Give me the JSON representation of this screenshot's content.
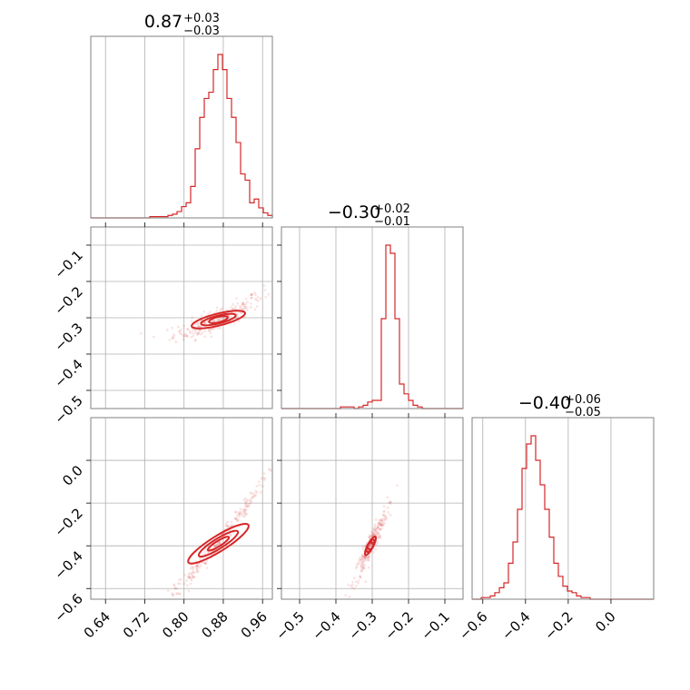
{
  "chart_data": {
    "type": "corner",
    "color": "#d62728",
    "params": [
      {
        "median": "0.87",
        "plus": "+0.03",
        "minus": "−0.03",
        "range": [
          0.61,
          0.98
        ],
        "ticks": [
          0.64,
          0.72,
          0.8,
          0.88,
          0.96
        ],
        "tick_labels": [
          "0.64",
          "0.72",
          "0.80",
          "0.88",
          "0.96"
        ],
        "hist": [
          0,
          0,
          0,
          0,
          0,
          0,
          0,
          0,
          0,
          0,
          0,
          0,
          0,
          1,
          1,
          1,
          1,
          2,
          3,
          5,
          9,
          12,
          25,
          55,
          80,
          95,
          100,
          118,
          130,
          118,
          95,
          80,
          60,
          35,
          30,
          12,
          15,
          8,
          4,
          2
        ]
      },
      {
        "median": "−0.30",
        "plus": "+0.02",
        "minus": "−0.01",
        "range": [
          -0.55,
          -0.05
        ],
        "ticks": [
          -0.5,
          -0.4,
          -0.3,
          -0.2,
          -0.1
        ],
        "tick_labels": [
          "−0.5",
          "−0.4",
          "−0.3",
          "−0.2",
          "−0.1"
        ],
        "hist": [
          0,
          0,
          0,
          0,
          0,
          0,
          0,
          0,
          0,
          0,
          0,
          0,
          0,
          1,
          1,
          1,
          0,
          1,
          2,
          4,
          5,
          5,
          55,
          100,
          95,
          55,
          15,
          9,
          5,
          2,
          1,
          0,
          0,
          0,
          0,
          0,
          0,
          0,
          0,
          0
        ]
      },
      {
        "median": "−0.40",
        "plus": "+0.06",
        "minus": "−0.05",
        "range": [
          -0.65,
          0.2
        ],
        "ticks": [
          -0.6,
          -0.4,
          -0.2,
          0.0
        ],
        "tick_labels": [
          "−0.6",
          "−0.4",
          "−0.2",
          "0.0"
        ],
        "hist": [
          0,
          0,
          1,
          1,
          2,
          4,
          7,
          10,
          22,
          35,
          55,
          80,
          95,
          100,
          85,
          70,
          55,
          38,
          22,
          14,
          8,
          5,
          4,
          2,
          1,
          1,
          0,
          0,
          0,
          0,
          0,
          0,
          0,
          0,
          0,
          0,
          0,
          0,
          0,
          0
        ]
      }
    ],
    "row_ticks": [
      null,
      {
        "ticks": [
          -0.5,
          -0.4,
          -0.3,
          -0.2,
          -0.1
        ],
        "tick_labels": [
          "−0.5",
          "−0.4",
          "−0.3",
          "−0.2",
          "−0.1"
        ]
      },
      {
        "ticks": [
          -0.6,
          -0.4,
          -0.2,
          0.0
        ],
        "tick_labels": [
          "−0.6",
          "−0.4",
          "−0.2",
          "0.0"
        ]
      }
    ],
    "pairs": [
      {
        "row": 1,
        "col": 0,
        "slope": 1.3,
        "curve": 1.5,
        "scatter": 0.015,
        "ellipse": [
          0.87,
          -0.305,
          0.035,
          0.012
        ]
      },
      {
        "row": 2,
        "col": 0,
        "slope": 2.8,
        "curve": 4.0,
        "scatter": 0.02,
        "ellipse": [
          0.87,
          -0.39,
          0.045,
          0.02
        ]
      },
      {
        "row": 2,
        "col": 1,
        "slope": 3.5,
        "curve": 0.0,
        "scatter": 0.03,
        "ellipse": [
          -0.305,
          -0.4,
          0.018,
          0.05
        ]
      }
    ],
    "grid": true
  }
}
